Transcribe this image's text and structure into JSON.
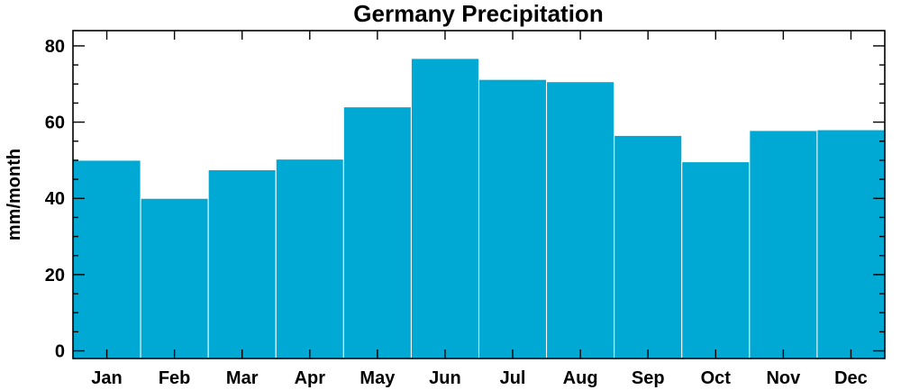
{
  "chart_data": {
    "type": "bar",
    "title": "Germany Precipitation",
    "xlabel": "",
    "ylabel": "mm/month",
    "categories": [
      "Jan",
      "Feb",
      "Mar",
      "Apr",
      "May",
      "Jun",
      "Jul",
      "Aug",
      "Sep",
      "Oct",
      "Nov",
      "Dec"
    ],
    "values": [
      50.0,
      40.0,
      47.5,
      50.3,
      64.0,
      76.7,
      71.2,
      70.6,
      56.5,
      49.6,
      57.8,
      58.0
    ],
    "ylim": [
      -2,
      84
    ],
    "y_major_ticks": [
      0,
      20,
      40,
      60,
      80
    ],
    "y_minor_step": 5,
    "grid": false,
    "bar_color": "#00a9d3"
  }
}
